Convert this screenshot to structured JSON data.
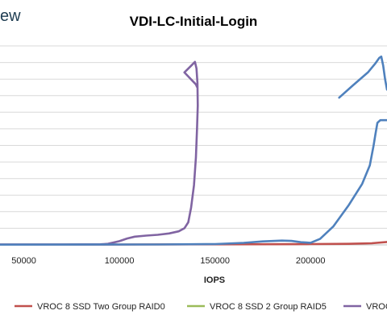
{
  "brand": {
    "text": "ew"
  },
  "chart_data": {
    "type": "line",
    "title": "VDI-LC-Initial-Login",
    "xlabel": "IOPS",
    "ylabel": "",
    "x_ticks": [
      "50000",
      "100000",
      "150000",
      "200000"
    ],
    "x_tick_values": [
      50000,
      100000,
      150000,
      200000
    ],
    "xlim": [
      37500,
      240000
    ],
    "y_gridlines": 12,
    "grid": true,
    "legend_position": "bottom",
    "series": [
      {
        "name": "VROC 8 SSD Two Group RAID0",
        "color": "#c0504d",
        "points": [
          [
            37500,
            0.2
          ],
          [
            90000,
            0.2
          ],
          [
            110000,
            0.3
          ],
          [
            150000,
            0.4
          ],
          [
            180000,
            0.5
          ],
          [
            200000,
            0.6
          ],
          [
            220000,
            0.8
          ],
          [
            232000,
            1.2
          ],
          [
            240000,
            2.2
          ]
        ]
      },
      {
        "name": "VROC 8 SSD 2 Group RAID5",
        "color": "#9bbb59",
        "points": []
      },
      {
        "name": "VROC",
        "color": "#8064a2",
        "points": [
          [
            37500,
            0.3
          ],
          [
            70000,
            0.3
          ],
          [
            90000,
            0.4
          ],
          [
            94000,
            0.8
          ],
          [
            100000,
            2.8
          ],
          [
            104000,
            4.8
          ],
          [
            108000,
            6.2
          ],
          [
            114000,
            7.0
          ],
          [
            120000,
            7.6
          ],
          [
            126000,
            8.6
          ],
          [
            131000,
            10.2
          ],
          [
            134000,
            12.5
          ],
          [
            136000,
            17
          ],
          [
            137500,
            28
          ],
          [
            139000,
            45
          ],
          [
            140000,
            66
          ],
          [
            140600,
            88
          ],
          [
            141000,
            105
          ],
          [
            140800,
            122
          ],
          [
            140300,
            133
          ],
          [
            139500,
            138
          ],
          [
            137500,
            135
          ],
          [
            134000,
            130
          ],
          [
            136000,
            127
          ],
          [
            138000,
            124
          ],
          [
            140000,
            121
          ],
          [
            140600,
            119
          ]
        ]
      },
      {
        "name": "",
        "color": "#4f81bd",
        "points": [
          [
            37500,
            0.2
          ],
          [
            120000,
            0.3
          ],
          [
            150000,
            0.6
          ],
          [
            165000,
            1.5
          ],
          [
            175000,
            2.6
          ],
          [
            185000,
            3.2
          ],
          [
            190000,
            3.0
          ],
          [
            195000,
            2.0
          ],
          [
            200000,
            1.6
          ],
          [
            205000,
            4.5
          ],
          [
            212000,
            14
          ],
          [
            220000,
            30
          ],
          [
            227000,
            46
          ],
          [
            231000,
            60
          ],
          [
            233000,
            75
          ],
          [
            234000,
            84
          ],
          [
            235000,
            92
          ],
          [
            236500,
            94
          ],
          [
            238000,
            94
          ],
          [
            240000,
            94
          ]
        ]
      },
      {
        "name": "",
        "color": "#4f81bd",
        "points": [
          [
            215000,
            111
          ],
          [
            222000,
            120
          ],
          [
            230000,
            130
          ],
          [
            234000,
            137
          ],
          [
            236000,
            141
          ],
          [
            237000,
            142
          ],
          [
            238000,
            135
          ],
          [
            239000,
            125
          ],
          [
            240000,
            117
          ]
        ]
      }
    ],
    "legend": [
      {
        "label": "VROC 8 SSD Two Group RAID0",
        "color": "#c0504d"
      },
      {
        "label": "VROC 8 SSD 2 Group RAID5",
        "color": "#9bbb59"
      },
      {
        "label": "VROC",
        "color": "#8064a2"
      }
    ]
  }
}
